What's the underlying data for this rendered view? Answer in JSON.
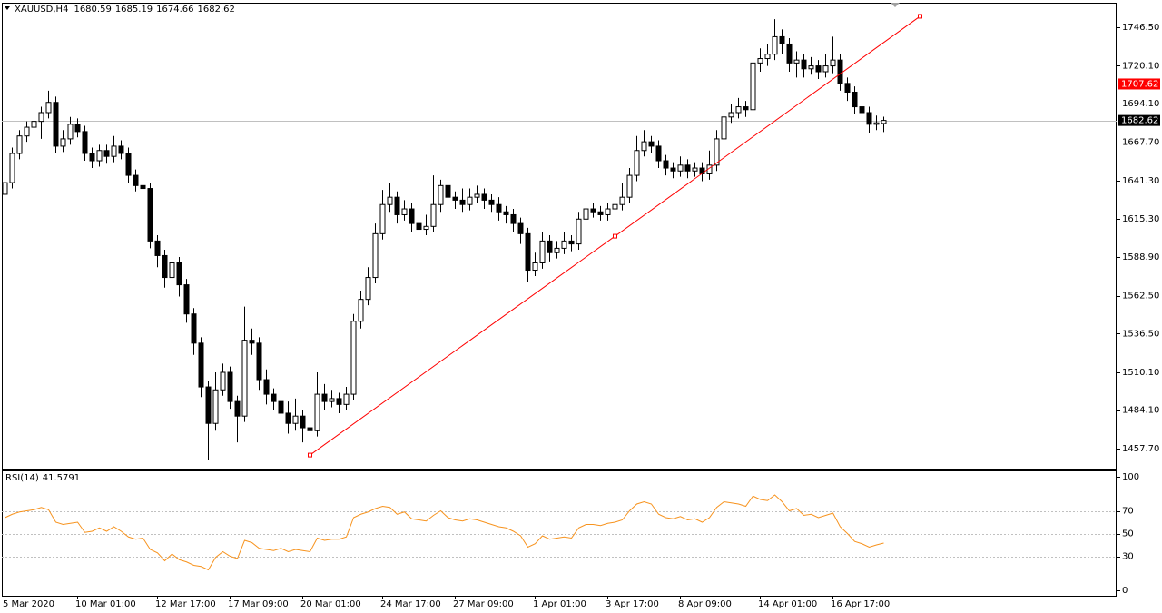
{
  "chart_data": [
    {
      "type": "candlestick",
      "symbol": "XAUUSD,H4",
      "categories": [
        "5 Mar 2020",
        null,
        null,
        null,
        null,
        null,
        null,
        null,
        null,
        null,
        "10 Mar 01:00",
        null,
        null,
        null,
        null,
        null,
        null,
        null,
        null,
        null,
        null,
        "12 Mar 17:00",
        null,
        null,
        null,
        null,
        null,
        null,
        null,
        null,
        null,
        "17 Mar 09:00",
        null,
        null,
        null,
        null,
        null,
        null,
        null,
        null,
        null,
        "20 Mar 01:00",
        null,
        null,
        null,
        null,
        null,
        null,
        null,
        null,
        null,
        null,
        "24 Mar 17:00",
        null,
        null,
        null,
        null,
        null,
        null,
        null,
        null,
        null,
        "27 Mar 09:00",
        null,
        null,
        null,
        null,
        null,
        null,
        null,
        null,
        null,
        null,
        "1 Apr 01:00",
        null,
        null,
        null,
        null,
        null,
        null,
        null,
        null,
        null,
        "3 Apr 17:00",
        null,
        null,
        null,
        null,
        null,
        null,
        null,
        null,
        null,
        "8 Apr 09:00",
        null,
        null,
        null,
        null,
        null,
        null,
        null,
        null,
        null,
        null,
        "14 Apr 01:00",
        null,
        null,
        null,
        null,
        null,
        null,
        null,
        null,
        null,
        "16 Apr 17:00",
        null,
        null,
        null,
        null,
        null,
        null,
        null
      ],
      "open": [
        1632,
        1640,
        1660,
        1672,
        1678,
        1682,
        1688,
        1695,
        1665,
        1670,
        1680,
        1675,
        1660,
        1655,
        1662,
        1658,
        1665,
        1660,
        1645,
        1638,
        1636,
        1600,
        1590,
        1575,
        1585,
        1570,
        1550,
        1530,
        1500,
        1475,
        1498,
        1510,
        1490,
        1480,
        1532,
        1530,
        1505,
        1495,
        1490,
        1482,
        1475,
        1480,
        1472,
        1470,
        1495,
        1490,
        1492,
        1488,
        1495,
        1545,
        1560,
        1575,
        1605,
        1625,
        1630,
        1618,
        1622,
        1612,
        1608,
        1610,
        1625,
        1638,
        1630,
        1628,
        1625,
        1630,
        1632,
        1628,
        1625,
        1620,
        1618,
        1612,
        1605,
        1580,
        1585,
        1600,
        1592,
        1595,
        1600,
        1598,
        1615,
        1622,
        1620,
        1618,
        1622,
        1625,
        1630,
        1645,
        1662,
        1668,
        1665,
        1655,
        1650,
        1648,
        1652,
        1648,
        1650,
        1646,
        1652,
        1670,
        1685,
        1688,
        1692,
        1690,
        1722,
        1725,
        1728,
        1740,
        1735,
        1722,
        1724,
        1718,
        1720,
        1716,
        1720,
        1724,
        1708,
        1702,
        1692,
        1688,
        1680,
        1680.59
      ],
      "high": [
        1644,
        1664,
        1676,
        1682,
        1688,
        1692,
        1703,
        1699,
        1676,
        1685,
        1684,
        1679,
        1664,
        1666,
        1666,
        1672,
        1669,
        1664,
        1649,
        1642,
        1640,
        1604,
        1594,
        1592,
        1589,
        1574,
        1554,
        1534,
        1504,
        1510,
        1516,
        1514,
        1494,
        1555,
        1540,
        1534,
        1512,
        1499,
        1494,
        1490,
        1492,
        1484,
        1478,
        1510,
        1502,
        1498,
        1496,
        1500,
        1550,
        1566,
        1582,
        1612,
        1635,
        1640,
        1634,
        1628,
        1626,
        1616,
        1618,
        1645,
        1642,
        1642,
        1634,
        1636,
        1636,
        1638,
        1636,
        1632,
        1630,
        1624,
        1622,
        1616,
        1609,
        1592,
        1606,
        1604,
        1600,
        1606,
        1604,
        1620,
        1628,
        1626,
        1624,
        1626,
        1630,
        1640,
        1650,
        1672,
        1676,
        1672,
        1669,
        1659,
        1654,
        1658,
        1656,
        1654,
        1654,
        1662,
        1676,
        1690,
        1694,
        1698,
        1696,
        1728,
        1732,
        1735,
        1752,
        1745,
        1739,
        1730,
        1728,
        1726,
        1724,
        1728,
        1740,
        1728,
        1712,
        1706,
        1696,
        1692,
        1686,
        1685.19
      ],
      "low": [
        1628,
        1636,
        1656,
        1668,
        1674,
        1670,
        1684,
        1660,
        1661,
        1666,
        1671,
        1655,
        1650,
        1651,
        1653,
        1654,
        1656,
        1640,
        1634,
        1632,
        1595,
        1582,
        1568,
        1571,
        1562,
        1544,
        1522,
        1493,
        1450,
        1470,
        1494,
        1485,
        1462,
        1476,
        1522,
        1498,
        1488,
        1484,
        1476,
        1468,
        1470,
        1462,
        1453,
        1466,
        1484,
        1486,
        1482,
        1484,
        1491,
        1540,
        1556,
        1571,
        1601,
        1620,
        1612,
        1614,
        1606,
        1602,
        1604,
        1606,
        1620,
        1626,
        1622,
        1620,
        1621,
        1626,
        1622,
        1620,
        1614,
        1612,
        1606,
        1598,
        1572,
        1576,
        1581,
        1586,
        1588,
        1591,
        1593,
        1594,
        1611,
        1616,
        1614,
        1614,
        1618,
        1621,
        1626,
        1641,
        1658,
        1660,
        1650,
        1645,
        1643,
        1644,
        1643,
        1644,
        1641,
        1642,
        1648,
        1666,
        1681,
        1684,
        1685,
        1686,
        1716,
        1720,
        1724,
        1728,
        1716,
        1712,
        1712,
        1714,
        1711,
        1712,
        1715,
        1703,
        1696,
        1687,
        1682,
        1674,
        1676,
        1674.66
      ],
      "close": [
        1640,
        1660,
        1672,
        1678,
        1682,
        1688,
        1695,
        1665,
        1670,
        1680,
        1675,
        1660,
        1655,
        1662,
        1658,
        1665,
        1660,
        1645,
        1638,
        1636,
        1600,
        1590,
        1575,
        1585,
        1570,
        1550,
        1530,
        1500,
        1475,
        1498,
        1510,
        1490,
        1480,
        1532,
        1530,
        1505,
        1495,
        1490,
        1482,
        1475,
        1480,
        1472,
        1470,
        1495,
        1490,
        1492,
        1488,
        1495,
        1545,
        1560,
        1575,
        1605,
        1625,
        1630,
        1618,
        1622,
        1612,
        1608,
        1610,
        1625,
        1638,
        1630,
        1628,
        1625,
        1630,
        1632,
        1628,
        1625,
        1620,
        1618,
        1612,
        1605,
        1580,
        1585,
        1600,
        1592,
        1595,
        1600,
        1598,
        1615,
        1622,
        1620,
        1618,
        1622,
        1625,
        1630,
        1645,
        1662,
        1668,
        1665,
        1655,
        1650,
        1648,
        1652,
        1648,
        1650,
        1646,
        1652,
        1670,
        1685,
        1688,
        1692,
        1690,
        1722,
        1725,
        1728,
        1740,
        1735,
        1722,
        1724,
        1718,
        1720,
        1716,
        1720,
        1724,
        1708,
        1702,
        1692,
        1688,
        1680,
        1681,
        1682.62
      ],
      "up_color": "#ffffff",
      "down_color": "#000000",
      "outline_color": "#000000",
      "ylim": [
        1443.4,
        1763.3
      ],
      "yticks": [
        {
          "value": 1746.5,
          "label": "1746.50"
        },
        {
          "value": 1720.1,
          "label": "1720.10"
        },
        {
          "value": 1694.1,
          "label": "1694.10"
        },
        {
          "value": 1667.7,
          "label": "1667.70"
        },
        {
          "value": 1641.3,
          "label": "1641.30"
        },
        {
          "value": 1615.3,
          "label": "1615.30"
        },
        {
          "value": 1588.9,
          "label": "1588.90"
        },
        {
          "value": 1562.5,
          "label": "1562.50"
        },
        {
          "value": 1536.5,
          "label": "1536.50"
        },
        {
          "value": 1510.1,
          "label": "1510.10"
        },
        {
          "value": 1484.1,
          "label": "1484.10"
        },
        {
          "value": 1457.7,
          "label": "1457.70"
        }
      ],
      "price_lines": [
        {
          "value": 1707.62,
          "color": "#ff0000",
          "line_color": "#ff0000"
        },
        {
          "value": 1682.62,
          "color": "#000000",
          "line_color": "#c0c0c0"
        }
      ],
      "trendline": {
        "x": [
          42,
          84,
          126
        ],
        "y": [
          1453.3,
          1603.3,
          1754.0
        ],
        "color": "#ff0000"
      }
    },
    {
      "type": "line",
      "series": [
        {
          "name": "RSI(14)",
          "color": "#f7931e",
          "values": [
            64,
            67,
            69,
            70,
            71,
            73,
            71,
            60,
            58,
            59,
            60,
            51,
            52,
            55,
            52,
            56,
            52,
            47,
            45,
            46,
            36,
            33,
            26,
            32,
            27,
            25,
            22,
            21,
            18,
            29,
            34,
            30,
            28,
            44,
            42,
            37,
            36,
            35,
            37,
            34,
            36,
            35,
            34,
            46,
            44,
            45,
            45,
            47,
            64,
            67,
            69,
            72,
            74,
            73,
            67,
            69,
            63,
            62,
            61,
            66,
            70,
            64,
            62,
            61,
            63,
            62,
            60,
            58,
            56,
            55,
            52,
            48,
            38,
            41,
            48,
            45,
            46,
            47,
            46,
            55,
            58,
            58,
            57,
            59,
            60,
            62,
            70,
            76,
            78,
            76,
            67,
            64,
            63,
            65,
            62,
            63,
            60,
            64,
            73,
            78,
            77,
            76,
            74,
            83,
            80,
            79,
            84,
            78,
            70,
            72,
            66,
            67,
            64,
            66,
            68,
            56,
            50,
            43,
            41,
            38,
            40,
            41.5791
          ]
        }
      ],
      "ylim": [
        -5.6,
        104.8
      ],
      "yticks": [
        100,
        70,
        50,
        30,
        0
      ],
      "dashed_levels": true
    }
  ]
}
